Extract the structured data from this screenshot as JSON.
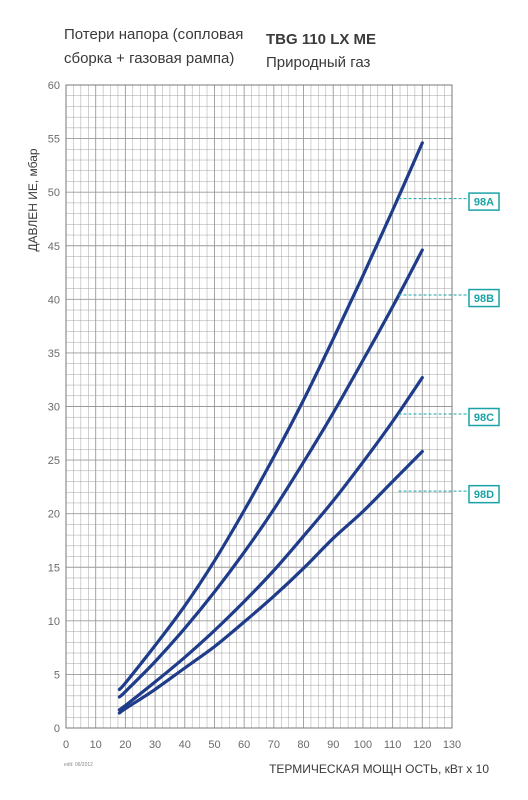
{
  "header": {
    "subtitle_lines": [
      "Потери напора (сопловая",
      "сборка + газовая рампа)"
    ],
    "title_lines": [
      "TBG 110 LX ME",
      "Природный газ"
    ]
  },
  "footer_note": "edit: 06/2012",
  "colors": {
    "curve": "#1f3c8a",
    "grid": "#9a9a9a",
    "accent": "#1aa3a6",
    "axis_text": "#6a6a6a"
  },
  "chart_data": {
    "type": "line",
    "title": "TBG 110 LX ME",
    "subtitle": "Природный газ",
    "xlabel": "ТЕРМИЧЕСКАЯ МОЩН ОСТЬ, кВт х 10",
    "ylabel": "ДАВЛЕН ИЕ, мбар",
    "xlim": [
      0,
      130
    ],
    "ylim": [
      0,
      60
    ],
    "x_ticks": [
      0,
      10,
      20,
      30,
      40,
      50,
      60,
      70,
      80,
      90,
      100,
      110,
      120,
      130
    ],
    "y_ticks": [
      0,
      5,
      10,
      15,
      20,
      25,
      30,
      35,
      40,
      45,
      50,
      55,
      60
    ],
    "grid": true,
    "legend": "right (boxed tags with dashed leader lines)",
    "series": [
      {
        "name": "98A",
        "x": [
          18,
          20,
          30,
          40,
          50,
          60,
          70,
          80,
          90,
          100,
          110,
          120
        ],
        "y": [
          3.6,
          4.2,
          7.7,
          11.4,
          15.6,
          20.3,
          25.3,
          30.6,
          36.3,
          42.2,
          48.3,
          54.6
        ]
      },
      {
        "name": "98B",
        "x": [
          18,
          20,
          30,
          40,
          50,
          60,
          70,
          80,
          90,
          100,
          110,
          120
        ],
        "y": [
          2.9,
          3.4,
          6.2,
          9.3,
          12.7,
          16.4,
          20.4,
          24.8,
          29.4,
          34.3,
          39.3,
          44.6
        ]
      },
      {
        "name": "98C",
        "x": [
          18,
          20,
          30,
          40,
          50,
          60,
          70,
          80,
          90,
          100,
          110,
          120
        ],
        "y": [
          1.7,
          2.1,
          4.3,
          6.6,
          9.1,
          11.8,
          14.7,
          17.9,
          21.2,
          24.8,
          28.6,
          32.7
        ]
      },
      {
        "name": "98D",
        "x": [
          18,
          20,
          30,
          40,
          50,
          60,
          70,
          80,
          90,
          100,
          110,
          120
        ],
        "y": [
          1.4,
          1.8,
          3.6,
          5.6,
          7.6,
          9.9,
          12.3,
          14.9,
          17.7,
          20.2,
          23.0,
          25.8
        ]
      }
    ],
    "legend_tag_y": {
      "98A": 49.4,
      "98B": 40.4,
      "98C": 29.3,
      "98D": 22.1
    }
  }
}
